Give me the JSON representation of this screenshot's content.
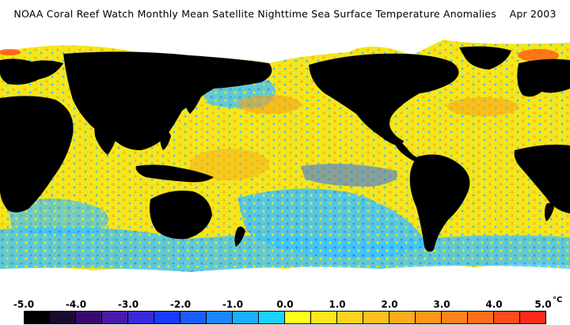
{
  "title": "NOAA Coral Reef Watch Monthly Mean Satellite Nighttime Sea Surface Temperature Anomalies    Apr 2003",
  "colors": {
    "ocean_neutral": "#f7ef1a",
    "land": "#000000",
    "ice": "#ffffff",
    "cool_light": "#2ec8ff",
    "cool_mid": "#1e78ff",
    "cool_deep": "#3a2aa8",
    "warm_light": "#f7d21e",
    "warm_mid": "#f6a21a",
    "warm_hot": "#ff4a10"
  },
  "scale": {
    "unit": "°C",
    "labels": [
      "-5.0",
      "-4.0",
      "-3.0",
      "-2.0",
      "-1.0",
      "0.0",
      "1.0",
      "2.0",
      "3.0",
      "4.0",
      "5.0"
    ],
    "swatches": [
      "#000000",
      "#1a0a2e",
      "#3a0a6e",
      "#4a1aa8",
      "#3a2adc",
      "#1a3aff",
      "#1a5cff",
      "#1a86ff",
      "#1aaeff",
      "#1ad2ff",
      "#ffff1a",
      "#ffe61a",
      "#ffd21a",
      "#ffbe1a",
      "#ffaa1a",
      "#ff961a",
      "#ff821a",
      "#ff6e1a",
      "#ff4a1a",
      "#ff2a1a"
    ]
  }
}
